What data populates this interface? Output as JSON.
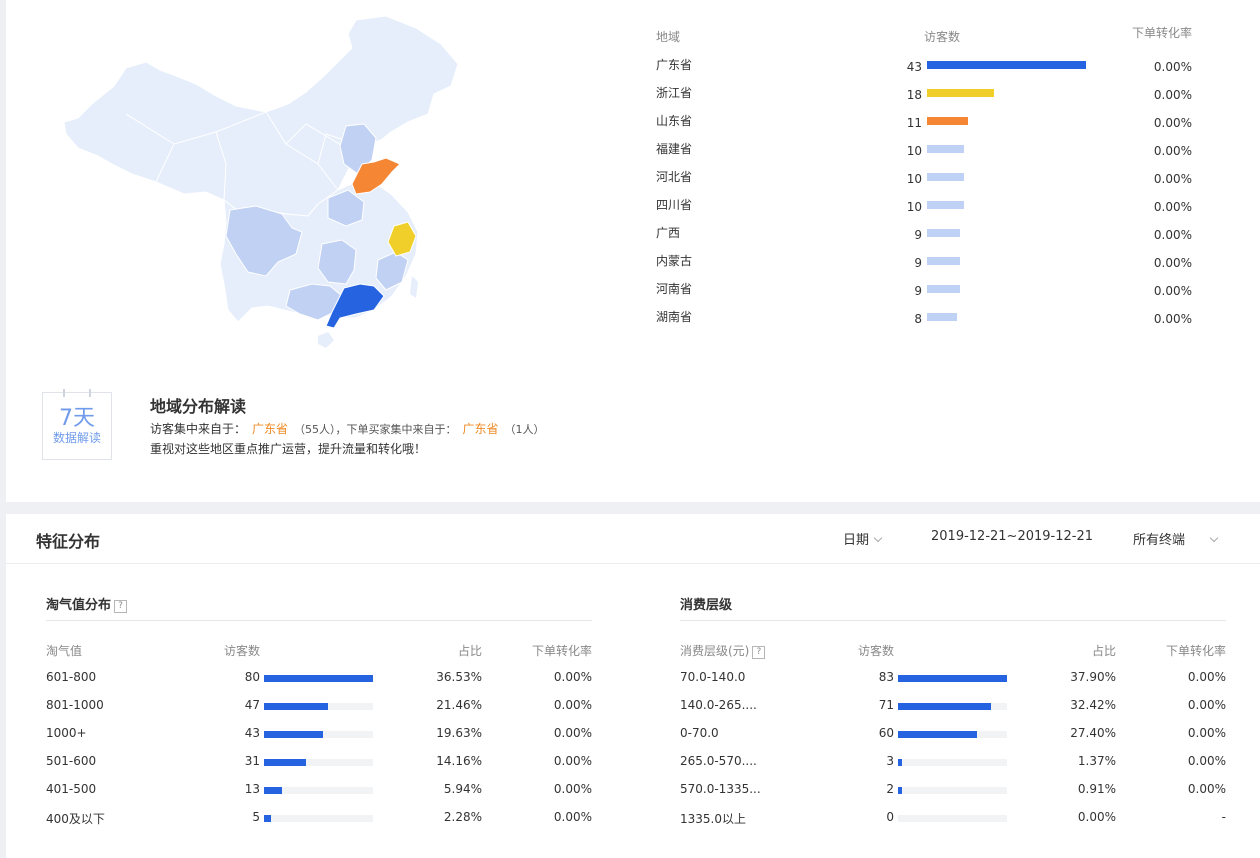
{
  "region": {
    "headers": {
      "area": "地域",
      "visitors": "访客数",
      "rate": "下单转化率"
    },
    "rows": [
      {
        "name": "广东省",
        "visitors": 43,
        "rate": "0.00%",
        "color": "#2563e0"
      },
      {
        "name": "浙江省",
        "visitors": 18,
        "rate": "0.00%",
        "color": "#f0cf2a"
      },
      {
        "name": "山东省",
        "visitors": 11,
        "rate": "0.00%",
        "color": "#f58634"
      },
      {
        "name": "福建省",
        "visitors": 10,
        "rate": "0.00%",
        "color": "#bfd1f5"
      },
      {
        "name": "河北省",
        "visitors": 10,
        "rate": "0.00%",
        "color": "#bfd1f5"
      },
      {
        "name": "四川省",
        "visitors": 10,
        "rate": "0.00%",
        "color": "#bfd1f5"
      },
      {
        "name": "广西",
        "visitors": 9,
        "rate": "0.00%",
        "color": "#bfd1f5"
      },
      {
        "name": "内蒙古",
        "visitors": 9,
        "rate": "0.00%",
        "color": "#bfd1f5"
      },
      {
        "name": "河南省",
        "visitors": 9,
        "rate": "0.00%",
        "color": "#bfd1f5"
      },
      {
        "name": "湖南省",
        "visitors": 8,
        "rate": "0.00%",
        "color": "#bfd1f5"
      }
    ],
    "max": 43
  },
  "badge": {
    "num": "7天",
    "text": "数据解读"
  },
  "interp": {
    "title": "地域分布解读",
    "visitor_prefix": "访客集中来自于：",
    "visitor_region": "广东省",
    "visitor_count": "（55人），下单买家集中来自于：",
    "buyer_region": "广东省",
    "buyer_count": "（1人）",
    "line2": "重视对这些地区重点推广运营，提升流量和转化哦！"
  },
  "features": {
    "title": "特征分布",
    "date_label": "日期",
    "date_range": "2019-12-21~2019-12-21",
    "terminal": "所有终端"
  },
  "taoqi": {
    "title": "淘气值分布",
    "help": "?",
    "headers": {
      "name": "淘气值",
      "visitors": "访客数",
      "ratio": "占比",
      "rate": "下单转化率"
    },
    "max": 80,
    "rows": [
      {
        "name": "601-800",
        "visitors": 80,
        "ratio": "36.53%",
        "rate": "0.00%"
      },
      {
        "name": "801-1000",
        "visitors": 47,
        "ratio": "21.46%",
        "rate": "0.00%"
      },
      {
        "name": "1000+",
        "visitors": 43,
        "ratio": "19.63%",
        "rate": "0.00%"
      },
      {
        "name": "501-600",
        "visitors": 31,
        "ratio": "14.16%",
        "rate": "0.00%"
      },
      {
        "name": "401-500",
        "visitors": 13,
        "ratio": "5.94%",
        "rate": "0.00%"
      },
      {
        "name": "400及以下",
        "visitors": 5,
        "ratio": "2.28%",
        "rate": "0.00%"
      }
    ]
  },
  "spend": {
    "title": "消费层级",
    "help": "?",
    "headers": {
      "name": "消费层级(元)",
      "visitors": "访客数",
      "ratio": "占比",
      "rate": "下单转化率"
    },
    "max": 83,
    "rows": [
      {
        "name": "70.0-140.0",
        "visitors": 83,
        "ratio": "37.90%",
        "rate": "0.00%"
      },
      {
        "name": "140.0-265....",
        "visitors": 71,
        "ratio": "32.42%",
        "rate": "0.00%"
      },
      {
        "name": "0-70.0",
        "visitors": 60,
        "ratio": "27.40%",
        "rate": "0.00%"
      },
      {
        "name": "265.0-570....",
        "visitors": 3,
        "ratio": "1.37%",
        "rate": "0.00%"
      },
      {
        "name": "570.0-1335...",
        "visitors": 2,
        "ratio": "0.91%",
        "rate": "0.00%"
      },
      {
        "name": "1335.0以上",
        "visitors": 0,
        "ratio": "0.00%",
        "rate": "-"
      }
    ]
  },
  "map_colors": {
    "base": "#e6eefb",
    "mid": "#c0d1f4",
    "blue": "#2563e0",
    "yellow": "#f0cf2a",
    "orange": "#f58634",
    "border": "#ffffff"
  }
}
